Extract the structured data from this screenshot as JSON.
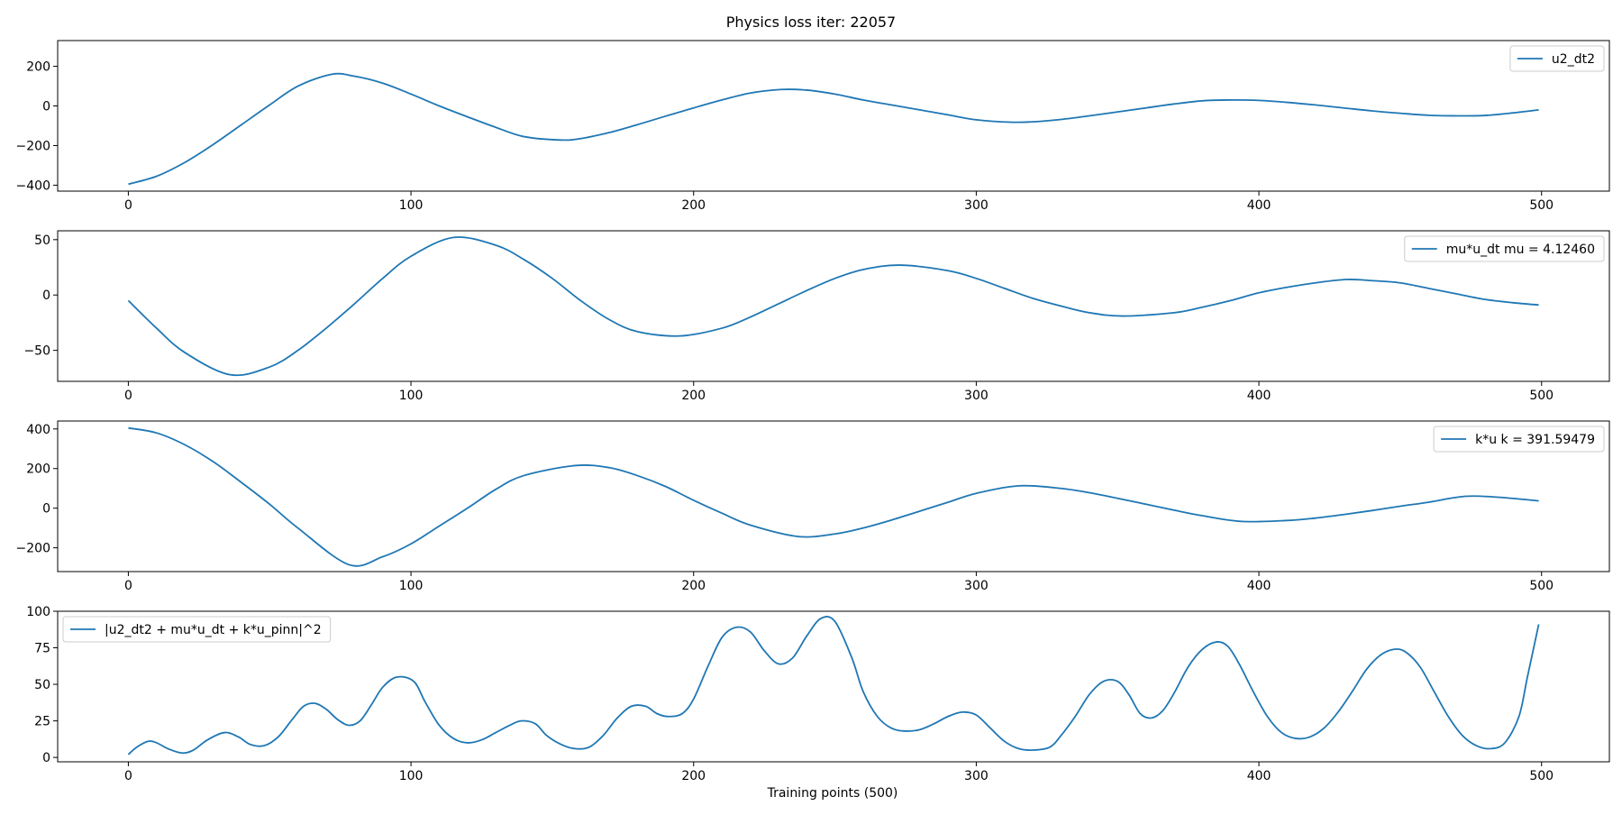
{
  "figure": {
    "title": "Physics loss iter: 22057",
    "xlabel": "Training points (500)",
    "line_color": "#1f77b4"
  },
  "chart_data": [
    {
      "type": "line",
      "series": [
        {
          "name": "u2_dt2",
          "x": [
            0,
            10,
            20,
            30,
            40,
            50,
            60,
            72,
            80,
            90,
            100,
            110,
            120,
            130,
            140,
            153,
            160,
            170,
            180,
            190,
            200,
            210,
            220,
            231,
            240,
            250,
            260,
            270,
            280,
            290,
            300,
            312,
            320,
            330,
            340,
            350,
            360,
            370,
            380,
            389,
            400,
            410,
            420,
            430,
            440,
            450,
            460,
            471,
            480,
            490,
            499
          ],
          "y": [
            -395,
            -355,
            -285,
            -195,
            -95,
            5,
            100,
            160,
            150,
            115,
            60,
            0,
            -55,
            -108,
            -155,
            -172,
            -165,
            -135,
            -95,
            -52,
            -10,
            30,
            65,
            83,
            80,
            60,
            30,
            5,
            -20,
            -45,
            -70,
            -82,
            -80,
            -68,
            -50,
            -30,
            -10,
            10,
            26,
            30,
            28,
            18,
            5,
            -10,
            -25,
            -37,
            -47,
            -50,
            -48,
            -35,
            -20
          ]
        }
      ],
      "ylim": [
        -430,
        330
      ],
      "xlim": [
        -25,
        524
      ],
      "yticks": [
        -400,
        -200,
        0,
        200
      ],
      "xticks": [
        0,
        100,
        200,
        300,
        400,
        500
      ],
      "legend": "upper right"
    },
    {
      "type": "line",
      "series": [
        {
          "name": "mu*u_dt  mu = 4.12460",
          "x": [
            0,
            10,
            20,
            36,
            50,
            60,
            70,
            80,
            90,
            100,
            115,
            130,
            140,
            150,
            160,
            170,
            180,
            195,
            210,
            220,
            230,
            240,
            250,
            260,
            273,
            290,
            300,
            310,
            320,
            330,
            340,
            352,
            370,
            380,
            390,
            400,
            410,
            420,
            431,
            440,
            450,
            460,
            470,
            480,
            490,
            499
          ],
          "y": [
            -5,
            -30,
            -52,
            -72,
            -65,
            -50,
            -30,
            -8,
            15,
            35,
            52,
            45,
            32,
            15,
            -5,
            -22,
            -33,
            -37,
            -30,
            -20,
            -8,
            4,
            15,
            23,
            27,
            22,
            15,
            6,
            -3,
            -10,
            -16,
            -19,
            -16,
            -11,
            -5,
            2,
            7,
            11,
            14,
            13,
            11,
            6,
            1,
            -4,
            -7,
            -9
          ]
        }
      ],
      "ylim": [
        -78,
        58
      ],
      "xlim": [
        -25,
        524
      ],
      "yticks": [
        -50,
        0,
        50
      ],
      "xticks": [
        0,
        100,
        200,
        300,
        400,
        500
      ],
      "legend": "upper right"
    },
    {
      "type": "line",
      "series": [
        {
          "name": "k*u  k = 391.59479",
          "x": [
            0,
            10,
            20,
            30,
            40,
            50,
            60,
            78,
            90,
            100,
            110,
            120,
            130,
            140,
            158,
            170,
            180,
            190,
            200,
            210,
            220,
            237,
            250,
            260,
            270,
            280,
            290,
            300,
            315,
            330,
            340,
            350,
            360,
            370,
            380,
            394,
            410,
            420,
            430,
            440,
            450,
            460,
            473,
            485,
            499
          ],
          "y": [
            405,
            380,
            320,
            235,
            130,
            20,
            -100,
            -285,
            -245,
            -180,
            -90,
            0,
            95,
            165,
            215,
            205,
            165,
            110,
            40,
            -25,
            -85,
            -143,
            -130,
            -100,
            -60,
            -15,
            30,
            75,
            113,
            100,
            78,
            50,
            20,
            -10,
            -38,
            -67,
            -62,
            -50,
            -32,
            -12,
            10,
            30,
            60,
            55,
            37
          ]
        }
      ],
      "ylim": [
        -320,
        440
      ],
      "xlim": [
        -25,
        524
      ],
      "yticks": [
        -200,
        0,
        200,
        400
      ],
      "xticks": [
        0,
        100,
        200,
        300,
        400,
        500
      ],
      "legend": "upper right"
    },
    {
      "type": "line",
      "series": [
        {
          "name": "|u2_dt2 + mu*u_dt + k*u_pinn|^2",
          "x": [
            0,
            3,
            7,
            10,
            14,
            19,
            23,
            28,
            34,
            39,
            43,
            48,
            53,
            58,
            62,
            66,
            70,
            74,
            78,
            82,
            86,
            90,
            95,
            101,
            105,
            110,
            115,
            120,
            125,
            130,
            135,
            139,
            144,
            148,
            153,
            158,
            163,
            168,
            173,
            178,
            183,
            187,
            191,
            196,
            200,
            205,
            210,
            215,
            220,
            225,
            230,
            235,
            240,
            245,
            250,
            256,
            260,
            265,
            270,
            275,
            280,
            285,
            290,
            295,
            300,
            305,
            310,
            315,
            320,
            326,
            330,
            335,
            340,
            345,
            350,
            354,
            358,
            362,
            366,
            370,
            375,
            380,
            385,
            389,
            393,
            398,
            403,
            408,
            413,
            418,
            423,
            428,
            433,
            438,
            443,
            448,
            452,
            457,
            462,
            467,
            472,
            477,
            482,
            487,
            492,
            495,
            499
          ],
          "y": [
            2,
            7,
            11,
            10,
            6,
            3,
            5,
            12,
            17,
            14,
            9,
            8,
            14,
            26,
            35,
            37,
            33,
            26,
            22,
            25,
            36,
            48,
            55,
            52,
            38,
            22,
            13,
            10,
            12,
            17,
            22,
            25,
            23,
            15,
            9,
            6,
            7,
            15,
            27,
            35,
            35,
            30,
            28,
            30,
            40,
            62,
            82,
            89,
            86,
            73,
            64,
            68,
            83,
            95,
            93,
            68,
            45,
            28,
            20,
            18,
            19,
            23,
            28,
            31,
            29,
            20,
            11,
            6,
            5,
            7,
            15,
            28,
            43,
            52,
            52,
            43,
            30,
            27,
            32,
            44,
            62,
            74,
            79,
            76,
            64,
            45,
            28,
            17,
            13,
            14,
            20,
            31,
            45,
            60,
            70,
            74,
            72,
            62,
            45,
            28,
            15,
            8,
            6,
            10,
            28,
            55,
            91
          ]
        }
      ],
      "ylim": [
        -3,
        100
      ],
      "xlim": [
        -25,
        524
      ],
      "yticks": [
        0,
        25,
        50,
        75,
        100
      ],
      "xticks": [
        0,
        100,
        200,
        300,
        400,
        500
      ],
      "legend": "upper left"
    }
  ]
}
